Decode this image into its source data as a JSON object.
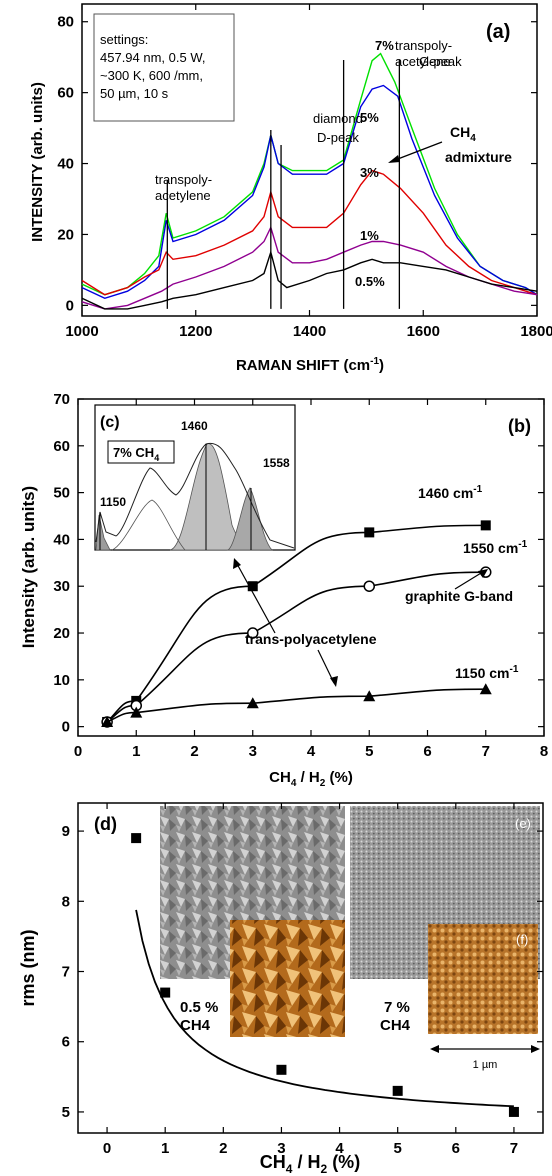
{
  "chart_data": [
    {
      "type": "line",
      "panel": "(a)",
      "xlabel": "RAMAN SHIFT (cm",
      "xlabel_sup": "-1",
      "xlabel_end": ")",
      "ylabel": "INTENSITY (arb. units)",
      "xlim": [
        1000,
        1800
      ],
      "ylim": [
        -3,
        85
      ],
      "xticks": [
        "1000",
        "1200",
        "1400",
        "1600",
        "1800"
      ],
      "yticks": [
        "0",
        "20",
        "40",
        "60",
        "80"
      ],
      "settings_text": [
        "settings:",
        "457.94 nm, 0.5 W,",
        "~300 K, 600 /mm,",
        "50 µm, 10 s"
      ],
      "peak_lines": [
        1150,
        1332,
        1350,
        1460,
        1558
      ],
      "annotations": {
        "transpoly_left": [
          "transpoly-",
          "acetylene"
        ],
        "diamond": "diamond",
        "d_peak": "D-peak",
        "transpoly_right": [
          "transpoly-",
          "acetylene"
        ],
        "g_peak": "G-peak",
        "ch4_admixture": [
          "CH",
          "4",
          "admixture"
        ]
      },
      "series": [
        {
          "name": "7%",
          "color": "#00e000",
          "points": [
            [
              1000,
              6
            ],
            [
              1040,
              3
            ],
            [
              1080,
              5
            ],
            [
              1110,
              9
            ],
            [
              1135,
              14
            ],
            [
              1148,
              26
            ],
            [
              1160,
              19
            ],
            [
              1200,
              21
            ],
            [
              1250,
              25
            ],
            [
              1300,
              32
            ],
            [
              1320,
              40
            ],
            [
              1332,
              48
            ],
            [
              1345,
              40
            ],
            [
              1370,
              38
            ],
            [
              1400,
              38
            ],
            [
              1430,
              38
            ],
            [
              1460,
              41
            ],
            [
              1490,
              58
            ],
            [
              1510,
              69
            ],
            [
              1525,
              71
            ],
            [
              1550,
              63
            ],
            [
              1580,
              50
            ],
            [
              1620,
              33
            ],
            [
              1660,
              20
            ],
            [
              1700,
              11
            ],
            [
              1740,
              7
            ],
            [
              1780,
              5
            ],
            [
              1800,
              3
            ]
          ]
        },
        {
          "name": "5%",
          "color": "#0000e0",
          "points": [
            [
              1000,
              5
            ],
            [
              1040,
              2
            ],
            [
              1080,
              4
            ],
            [
              1110,
              7
            ],
            [
              1135,
              11
            ],
            [
              1148,
              24
            ],
            [
              1160,
              18
            ],
            [
              1200,
              20
            ],
            [
              1250,
              24
            ],
            [
              1300,
              31
            ],
            [
              1320,
              39
            ],
            [
              1332,
              48
            ],
            [
              1345,
              40
            ],
            [
              1370,
              37
            ],
            [
              1400,
              37
            ],
            [
              1430,
              37
            ],
            [
              1460,
              40
            ],
            [
              1490,
              56
            ],
            [
              1510,
              61
            ],
            [
              1530,
              62
            ],
            [
              1555,
              59
            ],
            [
              1580,
              47
            ],
            [
              1620,
              31
            ],
            [
              1660,
              19
            ],
            [
              1700,
              11
            ],
            [
              1740,
              7
            ],
            [
              1780,
              5
            ],
            [
              1800,
              3
            ]
          ]
        },
        {
          "name": "3%",
          "color": "#e00000",
          "points": [
            [
              1000,
              7
            ],
            [
              1040,
              3
            ],
            [
              1080,
              5
            ],
            [
              1110,
              8
            ],
            [
              1135,
              10
            ],
            [
              1148,
              15
            ],
            [
              1160,
              13
            ],
            [
              1200,
              14
            ],
            [
              1250,
              17
            ],
            [
              1300,
              21
            ],
            [
              1320,
              25
            ],
            [
              1332,
              32
            ],
            [
              1345,
              25
            ],
            [
              1370,
              22
            ],
            [
              1400,
              22
            ],
            [
              1430,
              22
            ],
            [
              1460,
              26
            ],
            [
              1490,
              34
            ],
            [
              1510,
              38
            ],
            [
              1530,
              37
            ],
            [
              1560,
              33
            ],
            [
              1600,
              26
            ],
            [
              1640,
              17
            ],
            [
              1680,
              11
            ],
            [
              1720,
              7
            ],
            [
              1760,
              5
            ],
            [
              1800,
              3
            ]
          ]
        },
        {
          "name": "1%",
          "color": "#900090",
          "points": [
            [
              1000,
              1
            ],
            [
              1040,
              -1
            ],
            [
              1080,
              0
            ],
            [
              1110,
              2
            ],
            [
              1140,
              4
            ],
            [
              1160,
              6
            ],
            [
              1200,
              8
            ],
            [
              1250,
              11
            ],
            [
              1300,
              15
            ],
            [
              1320,
              18
            ],
            [
              1332,
              22
            ],
            [
              1345,
              15
            ],
            [
              1370,
              12
            ],
            [
              1400,
              12
            ],
            [
              1430,
              13
            ],
            [
              1460,
              15
            ],
            [
              1490,
              17
            ],
            [
              1510,
              18
            ],
            [
              1530,
              18
            ],
            [
              1560,
              17
            ],
            [
              1600,
              15
            ],
            [
              1640,
              11
            ],
            [
              1680,
              8
            ],
            [
              1720,
              6
            ],
            [
              1760,
              4
            ],
            [
              1800,
              3
            ]
          ]
        },
        {
          "name": "0.5%",
          "color": "#000000",
          "points": [
            [
              1000,
              2
            ],
            [
              1040,
              -1
            ],
            [
              1080,
              -1
            ],
            [
              1110,
              0
            ],
            [
              1140,
              1
            ],
            [
              1160,
              2
            ],
            [
              1200,
              3
            ],
            [
              1250,
              5
            ],
            [
              1300,
              7
            ],
            [
              1320,
              9
            ],
            [
              1332,
              15
            ],
            [
              1345,
              7
            ],
            [
              1360,
              5
            ],
            [
              1400,
              7
            ],
            [
              1430,
              9
            ],
            [
              1460,
              10
            ],
            [
              1490,
              12
            ],
            [
              1510,
              13
            ],
            [
              1530,
              12
            ],
            [
              1560,
              12
            ],
            [
              1600,
              11
            ],
            [
              1640,
              10
            ],
            [
              1680,
              8
            ],
            [
              1720,
              6
            ],
            [
              1760,
              5
            ],
            [
              1800,
              4
            ]
          ]
        }
      ]
    },
    {
      "type": "scatter",
      "panel": "(b)",
      "xlabel": "CH",
      "xlabel_sub": "4",
      "xlabel_mid": " / H",
      "xlabel_sub2": "2",
      "xlabel_end": " (%)",
      "ylabel": "Intensity (arb. units)",
      "xlim": [
        0,
        8
      ],
      "ylim": [
        -2,
        70
      ],
      "xticks": [
        "0",
        "1",
        "2",
        "3",
        "4",
        "5",
        "6",
        "7",
        "8"
      ],
      "yticks": [
        "0",
        "10",
        "20",
        "30",
        "40",
        "50",
        "60",
        "70"
      ],
      "series": [
        {
          "name": "1460 cm",
          "sup": "-1",
          "marker": "square",
          "x": [
            0.5,
            1,
            3,
            5,
            7
          ],
          "y": [
            1,
            5.5,
            30,
            41.5,
            43
          ]
        },
        {
          "name": "1550 cm",
          "sup": "-1",
          "marker": "circle",
          "x": [
            0.5,
            1,
            3,
            5,
            7
          ],
          "y": [
            1,
            4.5,
            20,
            30,
            33
          ]
        },
        {
          "name": "1150 cm",
          "sup": "-1",
          "marker": "triangle",
          "x": [
            0.5,
            1,
            3,
            5,
            7
          ],
          "y": [
            1,
            3,
            5,
            6.5,
            8
          ]
        }
      ],
      "annotations": {
        "graphite": "graphite G-band",
        "transpoly": "trans-polyacetylene"
      },
      "inset": {
        "panel": "(c)",
        "label": "7% CH",
        "label_sub": "4",
        "peaks": [
          "1150",
          "1460",
          "1558"
        ]
      }
    },
    {
      "type": "scatter",
      "panel": "(d)",
      "xlabel": "CH",
      "xlabel_sub": "4",
      "xlabel_mid": " / H",
      "xlabel_sub2": "2",
      "xlabel_end": "  (%)",
      "ylabel": "rms (nm)",
      "xlim": [
        -0.5,
        7.5
      ],
      "ylim": [
        4.7,
        9.4
      ],
      "xticks": [
        "0",
        "1",
        "2",
        "3",
        "4",
        "5",
        "6",
        "7"
      ],
      "yticks": [
        "5",
        "6",
        "7",
        "8",
        "9"
      ],
      "x": [
        0.5,
        1,
        3,
        5,
        7
      ],
      "y": [
        8.9,
        6.7,
        5.6,
        5.3,
        5.0
      ],
      "inset_labels": {
        "e": "(e)",
        "f": "(f)",
        "left_conc": [
          "0.5 %",
          "CH4"
        ],
        "right_conc": [
          "7 %",
          "CH4"
        ],
        "scale": "1 µm"
      }
    }
  ]
}
